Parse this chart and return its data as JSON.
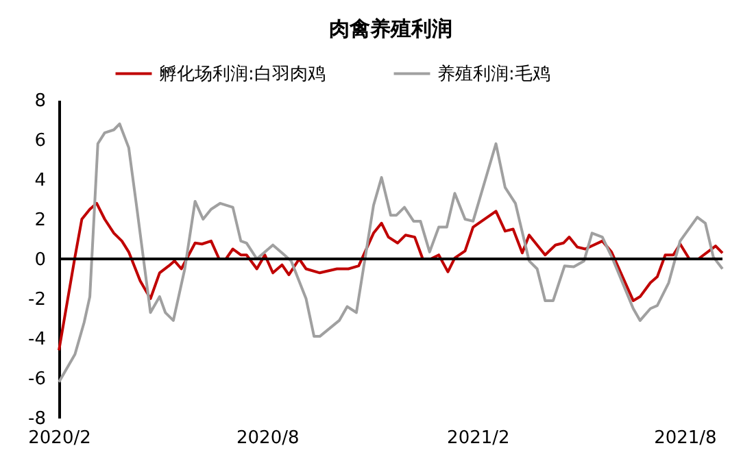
{
  "chart_data": {
    "type": "line",
    "title": "肉禽养殖利润",
    "xlim": [
      "2020-02-01",
      "2021-09-03"
    ],
    "xticks": [
      {
        "value": "2020-02-01",
        "label": "2020/2"
      },
      {
        "value": "2020-08-01",
        "label": "2020/8"
      },
      {
        "value": "2021-02-01",
        "label": "2021/2"
      },
      {
        "value": "2021-08-01",
        "label": "2021/8"
      }
    ],
    "ylim": [
      -8,
      8
    ],
    "yticks": [
      -8,
      -6,
      -4,
      -2,
      0,
      2,
      4,
      6,
      8
    ],
    "grid": false,
    "legend": "top",
    "marker": "none",
    "line_style": "solid",
    "ref_lines": [
      {
        "axis": "y",
        "value": 0,
        "color": "#000000"
      }
    ],
    "series": [
      {
        "name": "孵化场利润:白羽肉鸡",
        "color": "#c00000",
        "x": [
          "2020-02-01",
          "2020-02-15",
          "2020-02-21",
          "2020-02-28",
          "2020-03-05",
          "2020-03-12",
          "2020-03-20",
          "2020-03-27",
          "2020-04-02",
          "2020-04-12",
          "2020-04-21",
          "2020-04-29",
          "2020-05-07",
          "2020-05-12",
          "2020-05-18",
          "2020-05-30",
          "2020-06-05",
          "2020-06-13",
          "2020-06-20",
          "2020-06-26",
          "2020-07-02",
          "2020-07-09",
          "2020-07-14",
          "2020-07-23",
          "2020-07-30",
          "2020-08-06",
          "2020-08-14",
          "2020-08-20",
          "2020-08-29",
          "2020-09-04",
          "2020-09-16",
          "2020-10-01",
          "2020-10-11",
          "2020-10-20",
          "2020-11-02",
          "2020-11-09",
          "2020-11-15",
          "2020-11-23",
          "2020-11-30",
          "2020-12-08",
          "2020-12-15",
          "2020-12-22",
          "2020-12-29",
          "2021-01-06",
          "2021-01-12",
          "2021-01-21",
          "2021-01-28",
          "2021-02-17",
          "2021-02-25",
          "2021-03-04",
          "2021-03-12",
          "2021-03-18",
          "2021-04-01",
          "2021-04-10",
          "2021-04-17",
          "2021-04-22",
          "2021-04-29",
          "2021-05-06",
          "2021-05-21",
          "2021-05-29",
          "2021-06-10",
          "2021-06-17",
          "2021-06-23",
          "2021-07-02",
          "2021-07-08",
          "2021-07-15",
          "2021-07-22",
          "2021-07-28",
          "2021-08-05",
          "2021-08-13",
          "2021-08-28",
          "2021-09-03"
        ],
        "values": [
          -4.6,
          0.1,
          2.0,
          2.5,
          2.8,
          2.0,
          1.3,
          0.9,
          0.35,
          -1.1,
          -2.0,
          -0.7,
          -0.35,
          -0.1,
          -0.5,
          0.8,
          0.75,
          0.9,
          0,
          0,
          0.5,
          0.2,
          0.2,
          -0.5,
          0.2,
          -0.7,
          -0.3,
          -0.8,
          0,
          -0.5,
          -0.7,
          -0.5,
          -0.5,
          -0.35,
          1.3,
          1.8,
          1.1,
          0.8,
          1.2,
          1.1,
          0,
          0,
          0.2,
          -0.65,
          0.05,
          0.4,
          1.6,
          2.4,
          1.4,
          1.5,
          0.3,
          1.2,
          0.2,
          0.7,
          0.8,
          1.1,
          0.6,
          0.5,
          0.9,
          0.35,
          -1.2,
          -2.1,
          -1.9,
          -1.2,
          -0.9,
          0.2,
          0.2,
          0.75,
          0,
          0,
          0.65,
          0.3
        ]
      },
      {
        "name": "养殖利润:毛鸡",
        "color": "#a0a0a0",
        "x": [
          "2020-02-01",
          "2020-02-15",
          "2020-02-23",
          "2020-02-28",
          "2020-03-06",
          "2020-03-12",
          "2020-03-20",
          "2020-03-25",
          "2020-04-02",
          "2020-04-09",
          "2020-04-21",
          "2020-04-29",
          "2020-05-04",
          "2020-05-11",
          "2020-05-21",
          "2020-05-30",
          "2020-06-06",
          "2020-06-13",
          "2020-06-21",
          "2020-07-02",
          "2020-07-09",
          "2020-07-14",
          "2020-07-23",
          "2020-08-06",
          "2020-08-14",
          "2020-08-22",
          "2020-09-04",
          "2020-09-11",
          "2020-09-16",
          "2020-10-03",
          "2020-10-10",
          "2020-10-18",
          "2020-11-02",
          "2020-11-09",
          "2020-11-17",
          "2020-11-22",
          "2020-11-29",
          "2020-12-07",
          "2020-12-13",
          "2020-12-21",
          "2020-12-29",
          "2021-01-05",
          "2021-01-12",
          "2021-01-21",
          "2021-01-28",
          "2021-02-17",
          "2021-02-25",
          "2021-03-06",
          "2021-03-18",
          "2021-03-25",
          "2021-04-01",
          "2021-04-08",
          "2021-04-18",
          "2021-04-26",
          "2021-05-05",
          "2021-05-12",
          "2021-05-21",
          "2021-05-30",
          "2021-06-17",
          "2021-06-23",
          "2021-07-02",
          "2021-07-08",
          "2021-07-18",
          "2021-07-28",
          "2021-08-12",
          "2021-08-19",
          "2021-08-26",
          "2021-09-03"
        ],
        "values": [
          -6.2,
          -4.8,
          -3.2,
          -1.9,
          5.8,
          6.35,
          6.5,
          6.8,
          5.6,
          2.6,
          -2.7,
          -1.9,
          -2.7,
          -3.1,
          -0.5,
          2.9,
          2.0,
          2.5,
          2.8,
          2.6,
          0.9,
          0.8,
          0,
          0.7,
          0.3,
          -0.1,
          -2.0,
          -3.9,
          -3.9,
          -3.1,
          -2.4,
          -2.7,
          2.7,
          4.1,
          2.2,
          2.2,
          2.6,
          1.9,
          1.9,
          0.35,
          1.6,
          1.6,
          3.3,
          2.0,
          1.9,
          5.8,
          3.6,
          2.8,
          -0.1,
          -0.5,
          -2.1,
          -2.1,
          -0.35,
          -0.4,
          -0.1,
          1.3,
          1.1,
          0,
          -2.5,
          -3.1,
          -2.5,
          -2.35,
          -1.2,
          0.9,
          2.1,
          1.8,
          0.1,
          -0.5
        ]
      }
    ]
  }
}
